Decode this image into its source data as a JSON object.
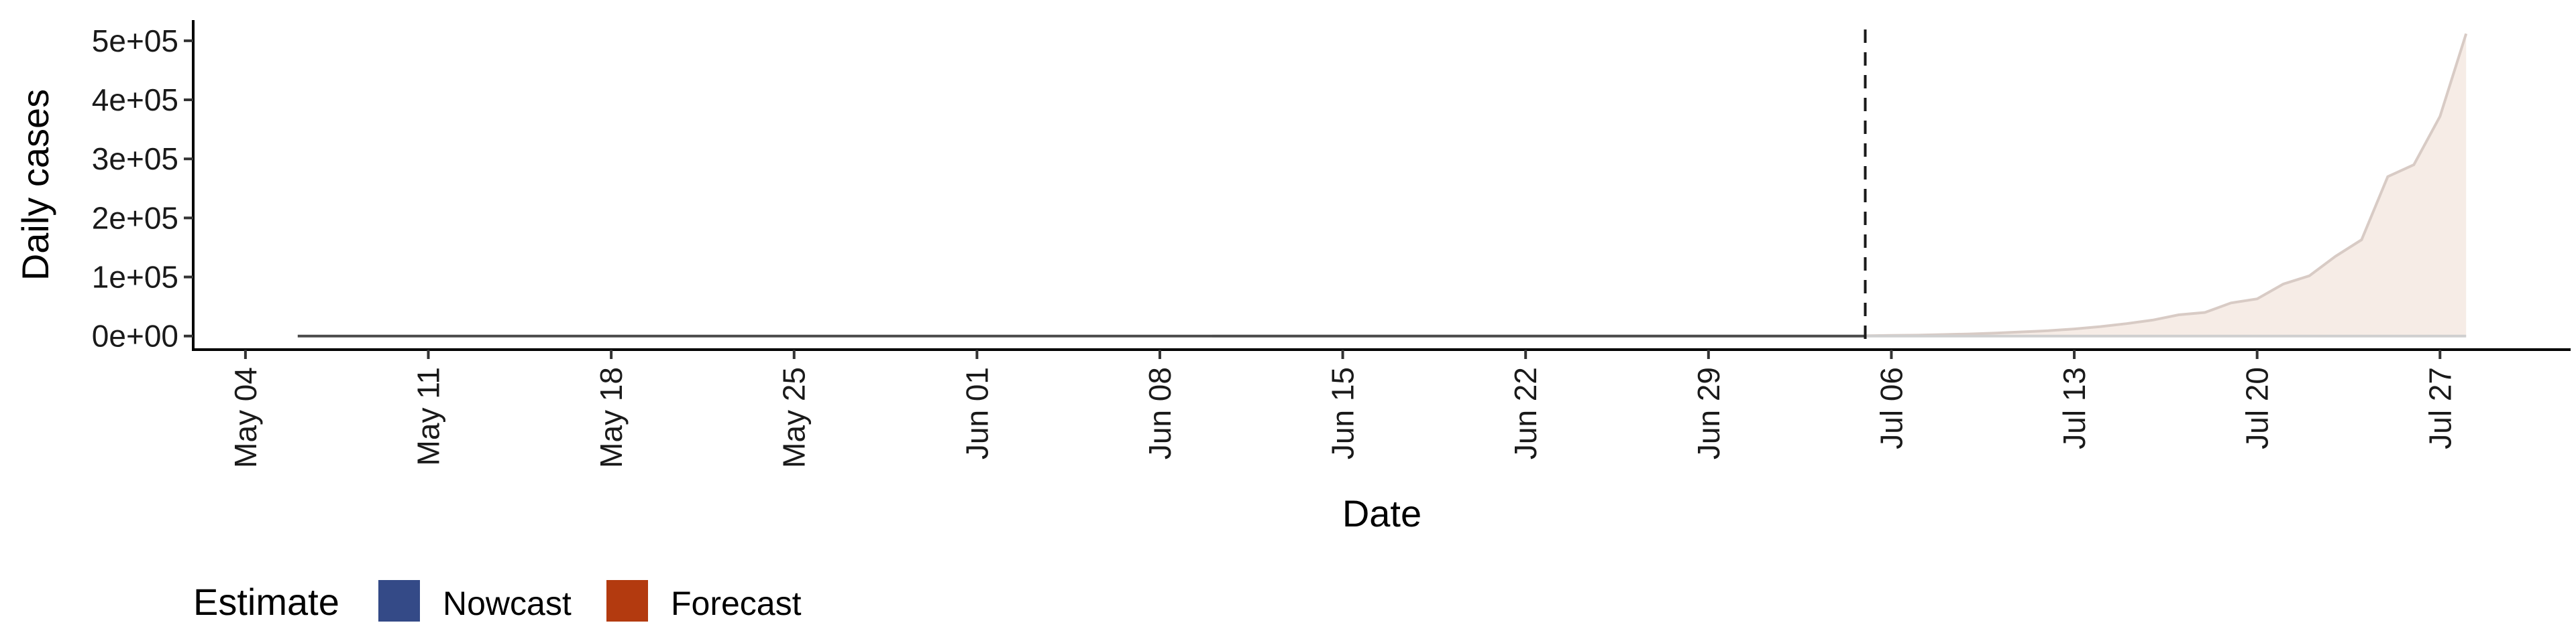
{
  "chart_data": {
    "type": "area",
    "title": "",
    "xlabel": "Date",
    "ylabel": "Daily cases",
    "x_start": "2020-05-02",
    "x_end": "2020-08-01",
    "y_range": [
      -23000,
      535000
    ],
    "y_ticks": [
      {
        "value": 0,
        "label": "0e+00"
      },
      {
        "value": 100000,
        "label": "1e+05"
      },
      {
        "value": 200000,
        "label": "2e+05"
      },
      {
        "value": 300000,
        "label": "3e+05"
      },
      {
        "value": 400000,
        "label": "4e+05"
      },
      {
        "value": 500000,
        "label": "5e+05"
      }
    ],
    "x_ticks": [
      {
        "date": "2020-05-04",
        "label": "May 04"
      },
      {
        "date": "2020-05-11",
        "label": "May 11"
      },
      {
        "date": "2020-05-18",
        "label": "May 18"
      },
      {
        "date": "2020-05-25",
        "label": "May 25"
      },
      {
        "date": "2020-06-01",
        "label": "Jun 01"
      },
      {
        "date": "2020-06-08",
        "label": "Jun 08"
      },
      {
        "date": "2020-06-15",
        "label": "Jun 15"
      },
      {
        "date": "2020-06-22",
        "label": "Jun 22"
      },
      {
        "date": "2020-06-29",
        "label": "Jun 29"
      },
      {
        "date": "2020-07-06",
        "label": "Jul 06"
      },
      {
        "date": "2020-07-13",
        "label": "Jul 13"
      },
      {
        "date": "2020-07-20",
        "label": "Jul 20"
      },
      {
        "date": "2020-07-27",
        "label": "Jul 27"
      }
    ],
    "vline_date": "2020-07-05",
    "grid": false,
    "legend_position": "bottom-left",
    "series": [
      {
        "name": "Nowcast",
        "color": "#344a87",
        "values": [
          [
            "2020-05-06",
            0
          ],
          [
            "2020-06-01",
            0
          ],
          [
            "2020-06-10",
            0
          ],
          [
            "2020-06-20",
            0
          ],
          [
            "2020-07-05",
            0
          ]
        ]
      },
      {
        "name": "Forecast",
        "color": "#b33a0f",
        "values": [
          [
            "2020-07-05",
            500
          ],
          [
            "2020-07-06",
            1000
          ],
          [
            "2020-07-07",
            1500
          ],
          [
            "2020-07-08",
            2500
          ],
          [
            "2020-07-09",
            3500
          ],
          [
            "2020-07-10",
            5000
          ],
          [
            "2020-07-11",
            7000
          ],
          [
            "2020-07-12",
            9000
          ],
          [
            "2020-07-13",
            12000
          ],
          [
            "2020-07-14",
            16000
          ],
          [
            "2020-07-15",
            21000
          ],
          [
            "2020-07-16",
            27000
          ],
          [
            "2020-07-17",
            36000
          ],
          [
            "2020-07-18",
            40000
          ],
          [
            "2020-07-19",
            56000
          ],
          [
            "2020-07-20",
            63000
          ],
          [
            "2020-07-21",
            88000
          ],
          [
            "2020-07-22",
            102000
          ],
          [
            "2020-07-23",
            135000
          ],
          [
            "2020-07-24",
            163000
          ],
          [
            "2020-07-25",
            270000
          ],
          [
            "2020-07-26",
            290000
          ],
          [
            "2020-07-27",
            372000
          ],
          [
            "2020-07-28",
            512000
          ]
        ]
      }
    ]
  },
  "legend": {
    "title": "Estimate",
    "items": [
      {
        "label": "Nowcast",
        "color": "#344a87"
      },
      {
        "label": "Forecast",
        "color": "#b33a0f"
      }
    ]
  }
}
